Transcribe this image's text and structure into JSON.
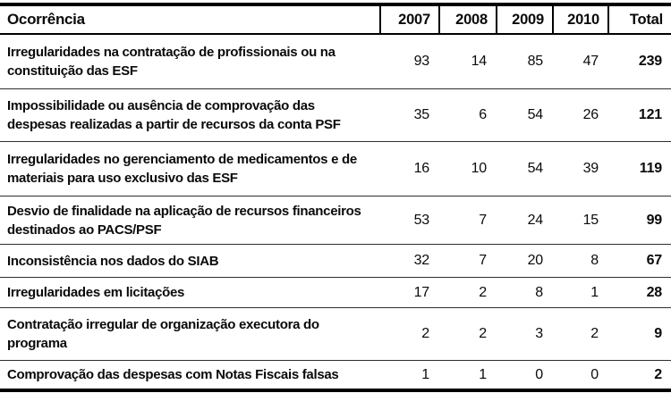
{
  "table": {
    "header": {
      "occurrence": "Ocorrência",
      "years": [
        "2007",
        "2008",
        "2009",
        "2010"
      ],
      "total": "Total"
    },
    "rows": [
      {
        "label": "Irregularidades na contratação de profissionais ou na constituição das ESF",
        "values": [
          93,
          14,
          85,
          47
        ],
        "total": 239
      },
      {
        "label": "Impossibilidade ou ausência de comprovação das despesas realizadas a partir de recursos da conta PSF",
        "values": [
          35,
          6,
          54,
          26
        ],
        "total": 121
      },
      {
        "label": "Irregularidades no gerenciamento de medicamentos e de materiais para uso exclusivo das ESF",
        "values": [
          16,
          10,
          54,
          39
        ],
        "total": 119
      },
      {
        "label": "Desvio de finalidade na aplicação de recursos finan­ceiros destinados ao PACS/PSF",
        "values": [
          53,
          7,
          24,
          15
        ],
        "total": 99
      },
      {
        "label": "Inconsistência nos dados do SIAB",
        "values": [
          32,
          7,
          20,
          8
        ],
        "total": 67
      },
      {
        "label": "Irregularidades em licitações",
        "values": [
          17,
          2,
          8,
          1
        ],
        "total": 28
      },
      {
        "label": "Contratação irregular de organização executora do programa",
        "values": [
          2,
          2,
          3,
          2
        ],
        "total": 9
      },
      {
        "label": "Comprovação das despesas com Notas Fiscais falsas",
        "values": [
          1,
          1,
          0,
          0
        ],
        "total": 2
      }
    ]
  },
  "colors": {
    "text": "#0a0a0a",
    "heavy_border": "#000000",
    "row_divider": "#2e2e2e",
    "background": "#ffffff"
  },
  "chart_data": {
    "type": "table",
    "columns": [
      "Ocorrência",
      "2007",
      "2008",
      "2009",
      "2010",
      "Total"
    ],
    "rows": [
      [
        "Irregularidades na contratação de profissionais ou na constituição das ESF",
        93,
        14,
        85,
        47,
        239
      ],
      [
        "Impossibilidade ou ausência de comprovação das despesas realizadas a partir de recursos da conta PSF",
        35,
        6,
        54,
        26,
        121
      ],
      [
        "Irregularidades no gerenciamento de medicamentos e de materiais para uso exclusivo das ESF",
        16,
        10,
        54,
        39,
        119
      ],
      [
        "Desvio de finalidade na aplicação de recursos financeiros destinados ao PACS/PSF",
        53,
        7,
        24,
        15,
        99
      ],
      [
        "Inconsistência nos dados do SIAB",
        32,
        7,
        20,
        8,
        67
      ],
      [
        "Irregularidades em licitações",
        17,
        2,
        8,
        1,
        28
      ],
      [
        "Contratação irregular de organização executora do programa",
        2,
        2,
        3,
        2,
        9
      ],
      [
        "Comprovação das despesas com Notas Fiscais falsas",
        1,
        1,
        0,
        0,
        2
      ]
    ]
  }
}
